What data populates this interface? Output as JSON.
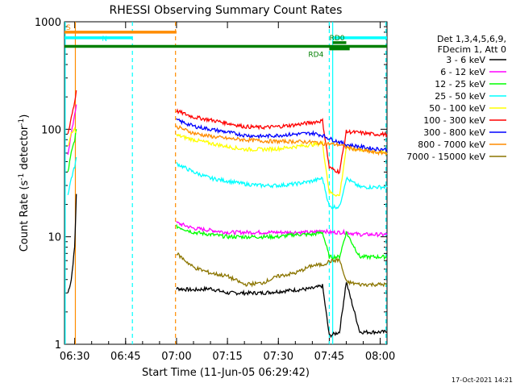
{
  "chart_data": {
    "type": "line",
    "title": "RHESSI Observing Summary Count Rates",
    "xlabel": "Start Time (11-Jun-05 06:29:42)",
    "ylabel_main": "Count Rate (s",
    "ylabel_sup1": "-1",
    "ylabel_mid": " detector",
    "ylabel_sup2": "-1",
    "ylabel_end": ")",
    "footer_date": "17-Oct-2021 14:21",
    "y_scale": "log",
    "xlim_minutes": [
      -3,
      92
    ],
    "ylim": [
      1,
      1000
    ],
    "x_ticks": [
      {
        "label": "06:30",
        "minute": 0
      },
      {
        "label": "06:45",
        "minute": 15
      },
      {
        "label": "07:00",
        "minute": 30
      },
      {
        "label": "07:15",
        "minute": 45
      },
      {
        "label": "07:30",
        "minute": 60
      },
      {
        "label": "07:45",
        "minute": 75
      },
      {
        "label": "08:00",
        "minute": 90
      }
    ],
    "y_ticks": [
      {
        "label": "1",
        "value": 1
      },
      {
        "label": "10",
        "value": 10
      },
      {
        "label": "100",
        "value": 100
      },
      {
        "label": "1000",
        "value": 1000
      }
    ],
    "legend_header": [
      "Det 1,3,4,5,6,9,",
      "FDecim 1, Att 0"
    ],
    "legend_position": "right",
    "series": [
      {
        "name": "3 - 6 keV",
        "color": "#000000",
        "segments": [
          {
            "x": [
              -2,
              -1,
              0,
              0.5
            ],
            "y": [
              3,
              4,
              8,
              25
            ]
          },
          {
            "x": [
              30,
              35,
              40,
              45,
              50,
              55,
              60,
              65,
              70,
              73,
              75,
              78,
              80,
              84,
              88,
              92
            ],
            "y": [
              3.3,
              3.2,
              3.3,
              3.0,
              3.0,
              3.0,
              3.1,
              3.2,
              3.3,
              3.5,
              1.2,
              1.3,
              3.8,
              1.3,
              1.3,
              1.3
            ]
          }
        ]
      },
      {
        "name": "6 - 12 keV",
        "color": "#ff00ff",
        "segments": [
          {
            "x": [
              -2,
              -1,
              0,
              0.5
            ],
            "y": [
              60,
              90,
              140,
              170
            ]
          },
          {
            "x": [
              30,
              35,
              40,
              45,
              50,
              55,
              60,
              65,
              70,
              73,
              75,
              78,
              80,
              84,
              88,
              92
            ],
            "y": [
              13.5,
              12.0,
              11.5,
              11.0,
              11.0,
              11.0,
              11.0,
              11.0,
              11.0,
              11.5,
              11.0,
              11.0,
              11.0,
              10.5,
              10.5,
              10.5
            ]
          }
        ]
      },
      {
        "name": "12 - 25 keV",
        "color": "#00ff00",
        "segments": [
          {
            "x": [
              -2,
              -1,
              0,
              0.5
            ],
            "y": [
              40,
              60,
              80,
              100
            ]
          },
          {
            "x": [
              30,
              35,
              40,
              45,
              50,
              55,
              60,
              65,
              70,
              73,
              75,
              78,
              80,
              84,
              88,
              92
            ],
            "y": [
              12.5,
              11.0,
              10.5,
              10.0,
              10.0,
              10.0,
              10.0,
              10.5,
              10.5,
              11.0,
              6.5,
              6.5,
              11.0,
              6.5,
              6.5,
              6.5
            ]
          }
        ]
      },
      {
        "name": "25 - 50 keV",
        "color": "#00ffff",
        "segments": [
          {
            "x": [
              -2,
              -1,
              0,
              0.5
            ],
            "y": [
              25,
              35,
              45,
              55
            ]
          },
          {
            "x": [
              30,
              35,
              40,
              45,
              50,
              55,
              60,
              65,
              70,
              73,
              75,
              78,
              80,
              84,
              88,
              92
            ],
            "y": [
              48,
              40,
              35,
              33,
              31,
              30,
              30,
              31,
              33,
              35,
              19,
              19,
              35,
              29,
              29,
              29
            ]
          }
        ]
      },
      {
        "name": "50 - 100 keV",
        "color": "#ffff00",
        "segments": [
          {
            "x": [
              -2,
              -1,
              0,
              0.5
            ],
            "y": [
              70,
              90,
              100,
              95
            ]
          },
          {
            "x": [
              30,
              35,
              40,
              45,
              50,
              55,
              60,
              65,
              70,
              73,
              75,
              78,
              80,
              84,
              88,
              92
            ],
            "y": [
              88,
              80,
              74,
              69,
              65,
              65,
              66,
              69,
              72,
              74,
              26,
              24,
              67,
              65,
              62,
              60
            ]
          }
        ]
      },
      {
        "name": "100 - 300 keV",
        "color": "#ff0000",
        "segments": [
          {
            "x": [
              -2,
              -1,
              0,
              0.5
            ],
            "y": [
              90,
              130,
              180,
              230
            ]
          },
          {
            "x": [
              30,
              35,
              40,
              45,
              50,
              55,
              60,
              65,
              70,
              73,
              75,
              78,
              80,
              84,
              88,
              92
            ],
            "y": [
              148,
              130,
              122,
              114,
              106,
              104,
              106,
              110,
              116,
              120,
              44,
              40,
              95,
              93,
              90,
              90
            ]
          }
        ]
      },
      {
        "name": "300 - 800 keV",
        "color": "#0000ff",
        "segments": [
          {
            "x": [
              30,
              35,
              40,
              45,
              50,
              55,
              60,
              65,
              70,
              73,
              75,
              78,
              80,
              84,
              88,
              92
            ],
            "y": [
              122,
              107,
              100,
              94,
              88,
              86,
              88,
              90,
              92,
              88,
              82,
              76,
              72,
              69,
              66,
              65
            ]
          }
        ]
      },
      {
        "name": "800 - 7000 keV",
        "color": "#ff8c00",
        "segments": [
          {
            "x": [
              30,
              35,
              40,
              45,
              50,
              55,
              60,
              65,
              70,
              73,
              75,
              78,
              80,
              84,
              88,
              92
            ],
            "y": [
              106,
              92,
              86,
              82,
              80,
              78,
              77,
              77,
              76,
              74,
              73,
              72,
              68,
              64,
              61,
              60
            ]
          }
        ]
      },
      {
        "name": "7000 - 15000 keV",
        "color": "#8b7500",
        "segments": [
          {
            "x": [
              30,
              35,
              40,
              45,
              50,
              55,
              60,
              65,
              70,
              73,
              75,
              78,
              80,
              84,
              88,
              92
            ],
            "y": [
              7.0,
              5.2,
              4.6,
              4.3,
              3.6,
              3.7,
              4.3,
              4.6,
              5.4,
              5.5,
              5.9,
              6.1,
              3.8,
              3.6,
              3.6,
              3.6
            ]
          }
        ]
      }
    ],
    "flag_bars": [
      {
        "label": "S",
        "color": "#ff8c00",
        "x_start": -3,
        "x_end": 30,
        "y_value": 800
      },
      {
        "label": "N",
        "color": "#00ffff",
        "x_start": -3,
        "x_end": 17,
        "y_value": 710
      },
      {
        "label": "",
        "color": "#00ffff",
        "x_start": 76,
        "x_end": 92,
        "y_value": 710
      },
      {
        "label": "",
        "color": "#007f00",
        "x_start": -3,
        "x_end": 92,
        "y_value": 590
      },
      {
        "label": "RD0",
        "color": "#007f00",
        "x_start": 76,
        "x_end": 80,
        "y_value": 640
      },
      {
        "label": "RD4",
        "color": "#007f00",
        "x_start": 75,
        "x_end": 81,
        "y_value": 560
      }
    ],
    "vertical_markers": [
      {
        "minute": -2.8,
        "color": "#00ffff",
        "style": "solid"
      },
      {
        "minute": 0.2,
        "color": "#ff8c00",
        "style": "solid"
      },
      {
        "minute": 17,
        "color": "#00ffff",
        "style": "dashed"
      },
      {
        "minute": 29.7,
        "color": "#ff8c00",
        "style": "dashed"
      },
      {
        "minute": 75,
        "color": "#00ffff",
        "style": "dashed"
      },
      {
        "minute": 76,
        "color": "#00ffff",
        "style": "solid"
      },
      {
        "minute": 91.7,
        "color": "#00ffff",
        "style": "dashed"
      }
    ]
  }
}
